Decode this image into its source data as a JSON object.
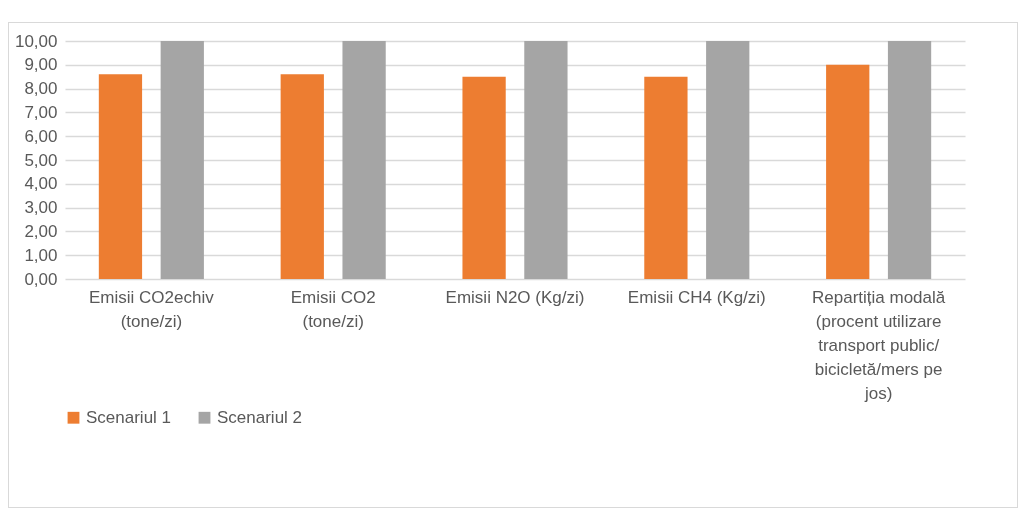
{
  "chart_data": {
    "type": "bar",
    "categories": [
      "Emisii CO2echiv (tone/zi)",
      "Emisii CO2 (tone/zi)",
      "Emisii N2O (Kg/zi)",
      "Emisii CH4 (Kg/zi)",
      "Repartiția modală (procent utilizare transport public/ bicicletă/mers pe jos)"
    ],
    "series": [
      {
        "name": "Scenariul 1",
        "color": "#ed7d31",
        "values": [
          8.6,
          8.6,
          8.5,
          8.5,
          9.0
        ]
      },
      {
        "name": "Scenariul 2",
        "color": "#a5a5a5",
        "values": [
          10,
          10,
          10,
          10,
          10
        ]
      }
    ],
    "ylim": [
      0,
      10
    ],
    "yticks": [
      {
        "value": 0,
        "label": "0,00"
      },
      {
        "value": 1,
        "label": "1,00"
      },
      {
        "value": 2,
        "label": "2,00"
      },
      {
        "value": 3,
        "label": "3,00"
      },
      {
        "value": 4,
        "label": "4,00"
      },
      {
        "value": 5,
        "label": "5,00"
      },
      {
        "value": 6,
        "label": "6,00"
      },
      {
        "value": 7,
        "label": "7,00"
      },
      {
        "value": 8,
        "label": "8,00"
      },
      {
        "value": 9,
        "label": "9,00"
      },
      {
        "value": 10,
        "label": "10,00"
      }
    ],
    "grid": "y",
    "legend": "bottom"
  }
}
